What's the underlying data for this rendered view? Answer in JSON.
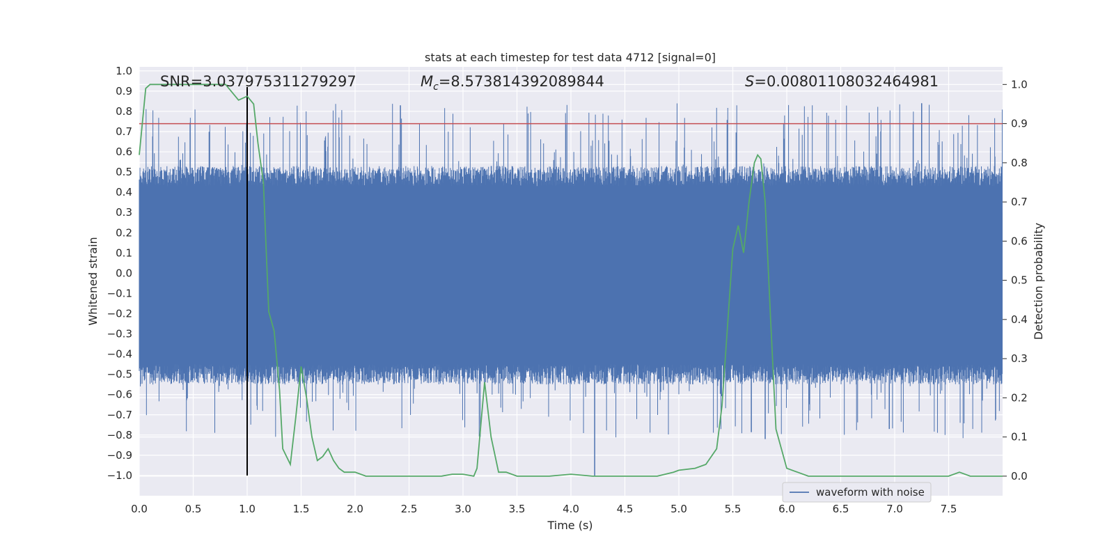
{
  "chart_data": {
    "type": "line",
    "title": "stats at each timestep for test data 4712 [signal=0]",
    "xlabel": "Time (s)",
    "ylabel_left": "Whitened strain",
    "ylabel_right": "Detection probability",
    "xlim": [
      0.0,
      8.0
    ],
    "ylim_left": [
      -1.1,
      1.02
    ],
    "ylim_right": [
      -0.05,
      1.045
    ],
    "x_ticks": [
      0.0,
      0.5,
      1.0,
      1.5,
      2.0,
      2.5,
      3.0,
      3.5,
      4.0,
      4.5,
      5.0,
      5.5,
      6.0,
      6.5,
      7.0,
      7.5
    ],
    "x_tick_labels": [
      "0.0",
      "0.5",
      "1.0",
      "1.5",
      "2.0",
      "2.5",
      "3.0",
      "3.5",
      "4.0",
      "4.5",
      "5.0",
      "5.5",
      "6.0",
      "6.5",
      "7.0",
      "7.5"
    ],
    "y_left_ticks": [
      1.0,
      0.9,
      0.8,
      0.7,
      0.6,
      0.5,
      0.4,
      0.3,
      0.2,
      0.1,
      0.0,
      -0.1,
      -0.2,
      -0.3,
      -0.4,
      -0.5,
      -0.6,
      -0.7,
      -0.8,
      -0.9,
      -1.0
    ],
    "y_left_tick_labels": [
      "1.0",
      "0.9",
      "0.8",
      "0.7",
      "0.6",
      "0.5",
      "0.4",
      "0.3",
      "0.2",
      "0.1",
      "0.0",
      "−0.1",
      "−0.2",
      "−0.3",
      "−0.4",
      "−0.5",
      "−0.6",
      "−0.7",
      "−0.8",
      "−0.9",
      "−1.0"
    ],
    "y_right_ticks": [
      1.0,
      0.9,
      0.8,
      0.7,
      0.6,
      0.5,
      0.4,
      0.3,
      0.2,
      0.1,
      0.0
    ],
    "y_right_tick_labels": [
      "1.0",
      "0.9",
      "0.8",
      "0.7",
      "0.6",
      "0.5",
      "0.4",
      "0.3",
      "0.2",
      "0.1",
      "0.0"
    ],
    "annotations": {
      "snr": "SNR=3.037975311279297",
      "mc_symbol": "M",
      "mc_subscript": "c",
      "mc_value": "=8.573814392089844",
      "s_symbol": "S",
      "s_value": "=0.00801108032464981"
    },
    "threshold": {
      "value": 0.9,
      "axis": "right",
      "color": "#c44e52"
    },
    "marker_line": {
      "x": 1.0,
      "y_from": -1.0,
      "y_to": 0.92,
      "color": "#000000"
    },
    "series": [
      {
        "name": "waveform with noise",
        "axis": "left",
        "color": "#4c72b0",
        "description_values": {
          "core_min": -0.5,
          "core_max": 0.48,
          "peak_max": 0.84,
          "peak_min": -1.0
        }
      },
      {
        "name": "detection probability",
        "axis": "right",
        "color": "#55a868",
        "x": [
          0.0,
          0.06,
          0.1,
          0.2,
          0.3,
          0.4,
          0.5,
          0.6,
          0.7,
          0.8,
          0.86,
          0.92,
          1.0,
          1.06,
          1.1,
          1.15,
          1.2,
          1.25,
          1.3,
          1.33,
          1.4,
          1.45,
          1.5,
          1.55,
          1.6,
          1.65,
          1.7,
          1.75,
          1.8,
          1.85,
          1.9,
          2.0,
          2.1,
          2.2,
          2.4,
          2.6,
          2.8,
          2.9,
          3.0,
          3.1,
          3.13,
          3.2,
          3.26,
          3.33,
          3.4,
          3.5,
          3.6,
          3.8,
          4.0,
          4.2,
          4.4,
          4.6,
          4.8,
          4.95,
          5.0,
          5.15,
          5.25,
          5.35,
          5.4,
          5.45,
          5.5,
          5.55,
          5.6,
          5.65,
          5.7,
          5.73,
          5.76,
          5.8,
          5.85,
          5.9,
          6.0,
          6.1,
          6.2,
          6.5,
          6.8,
          7.0,
          7.3,
          7.5,
          7.6,
          7.7,
          8.0
        ],
        "values": [
          0.82,
          0.99,
          1.0,
          1.0,
          1.0,
          1.0,
          1.0,
          1.0,
          1.0,
          1.0,
          0.98,
          0.96,
          0.97,
          0.95,
          0.85,
          0.75,
          0.42,
          0.37,
          0.22,
          0.07,
          0.03,
          0.15,
          0.28,
          0.2,
          0.1,
          0.04,
          0.05,
          0.07,
          0.04,
          0.02,
          0.01,
          0.01,
          0.0,
          0.0,
          0.0,
          0.0,
          0.0,
          0.005,
          0.005,
          0.0,
          0.02,
          0.24,
          0.1,
          0.01,
          0.01,
          0.0,
          0.0,
          0.0,
          0.005,
          0.0,
          0.0,
          0.0,
          0.0,
          0.01,
          0.015,
          0.02,
          0.03,
          0.07,
          0.18,
          0.38,
          0.58,
          0.64,
          0.57,
          0.7,
          0.8,
          0.82,
          0.81,
          0.7,
          0.4,
          0.12,
          0.02,
          0.01,
          0.0,
          0.0,
          0.0,
          0.0,
          0.0,
          0.0,
          0.01,
          0.0,
          0.0
        ]
      }
    ],
    "legend": {
      "placement": "bottom-right",
      "entries": [
        "waveform with noise"
      ]
    }
  },
  "colors": {
    "background": "#eaeaf2",
    "grid": "#ffffff",
    "strain": "#4c72b0",
    "probability": "#55a868",
    "threshold": "#c44e52",
    "marker": "#000000",
    "text": "#262626"
  }
}
